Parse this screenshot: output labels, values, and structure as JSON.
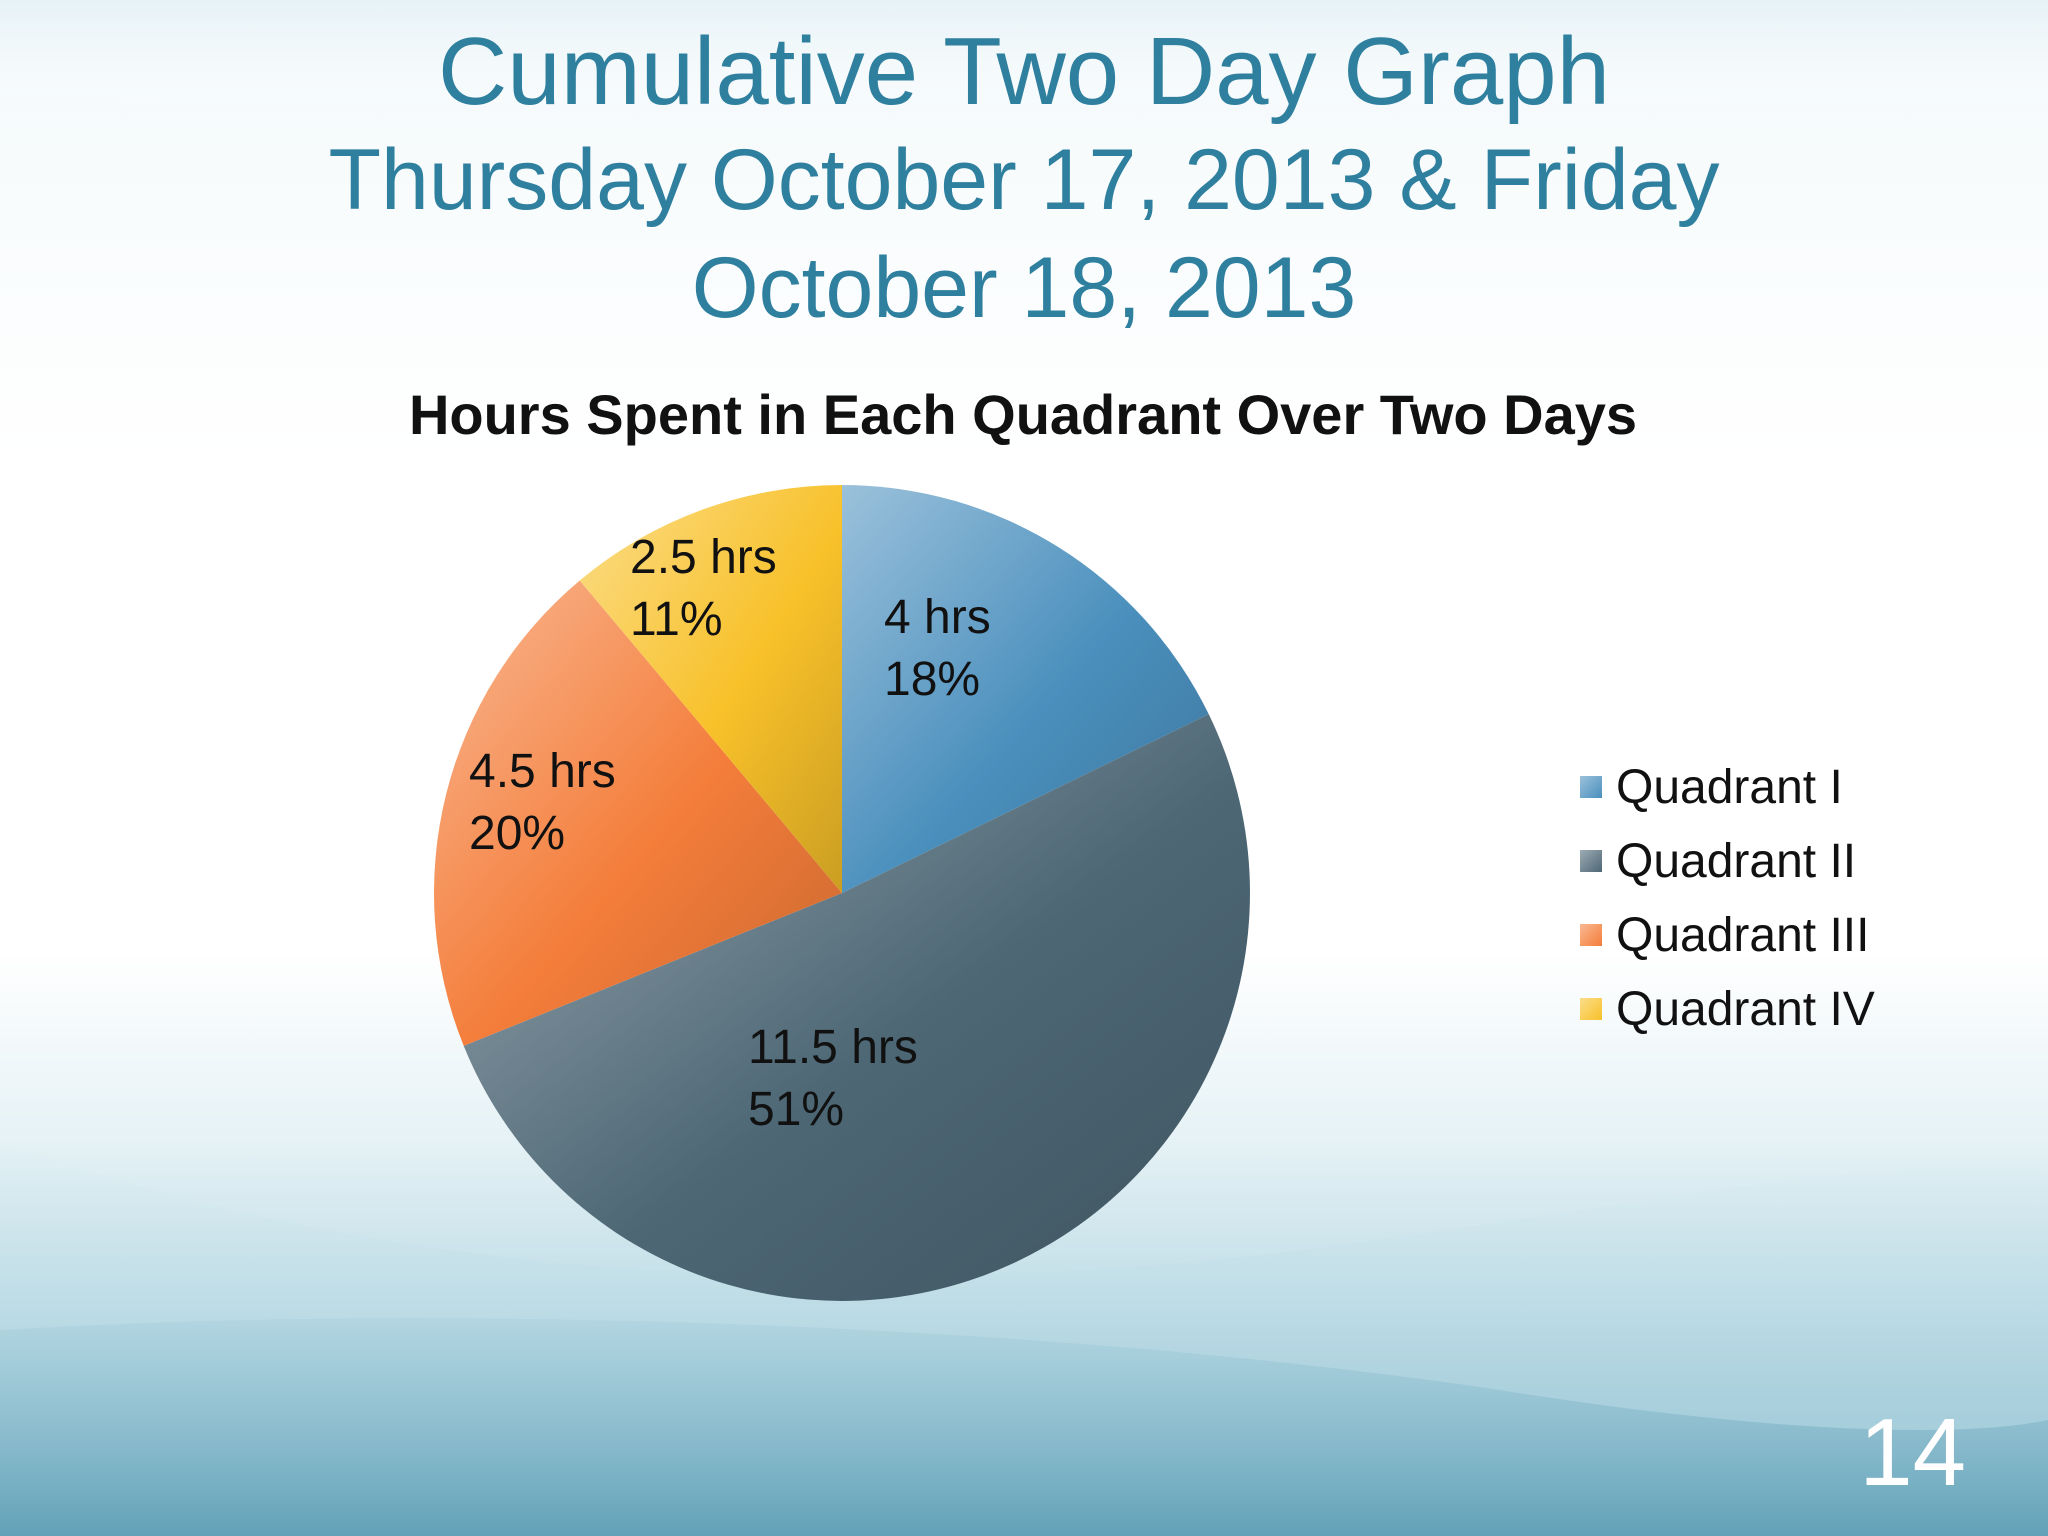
{
  "slide": {
    "title_line1": "Cumulative Two Day Graph",
    "title_line2": "Thursday October 17, 2013 & Friday",
    "title_line3": "October 18, 2013",
    "slide_number": "14",
    "title_color": "#2f7f9f"
  },
  "chart_data": {
    "type": "pie",
    "title": "Hours Spent in Each Quadrant Over Two Days",
    "legend_position": "right",
    "categories": [
      "Quadrant I",
      "Quadrant II",
      "Quadrant III",
      "Quadrant IV"
    ],
    "values": [
      4,
      11.5,
      4.5,
      2.5
    ],
    "value_labels": [
      "4 hrs",
      "11.5 hrs",
      "4.5 hrs",
      "2.5 hrs"
    ],
    "percent_labels": [
      "18%",
      "51%",
      "20%",
      "11%"
    ],
    "colors": [
      "#4a8fbd",
      "#4d6775",
      "#f47d3a",
      "#f8c12a"
    ],
    "start_angle": "12 o'clock, clockwise"
  }
}
